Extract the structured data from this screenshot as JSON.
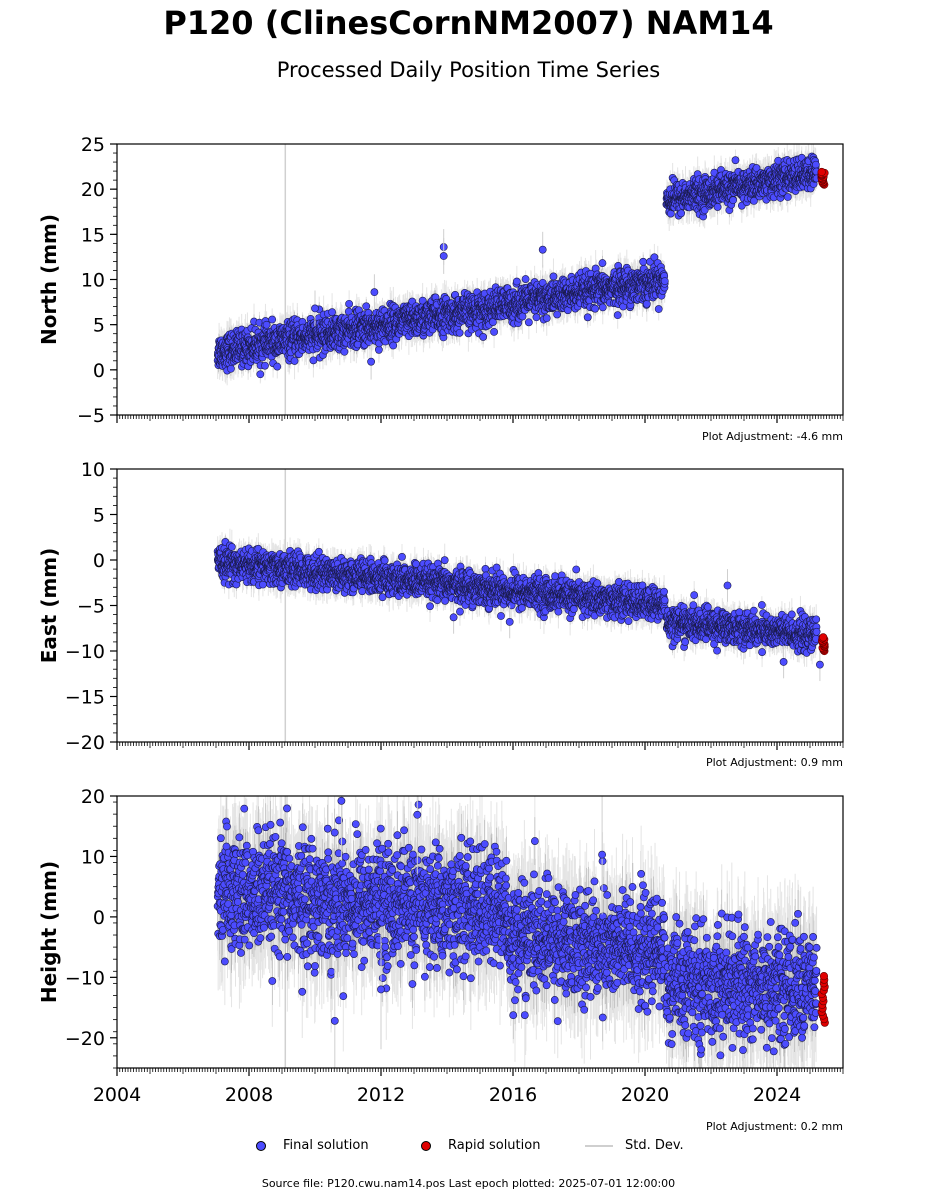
{
  "title": "P120 (ClinesCornNM2007) NAM14",
  "subtitle": "Processed Daily Position Time Series",
  "chart_data": [
    {
      "type": "scatter",
      "ylabel": "North (mm)",
      "xlim": [
        2004,
        2026
      ],
      "ylim": [
        -5,
        25
      ],
      "yticks": [
        -5,
        0,
        5,
        10,
        15,
        20,
        25
      ],
      "adjustment": "Plot Adjustment: -4.6 mm",
      "vline_x": 2009.1,
      "final_segments": [
        {
          "x0": 2007.05,
          "x1": 2020.6,
          "y0": 2.0,
          "y1": 10.0,
          "scatter": 1.1
        },
        {
          "x0": 2020.65,
          "x1": 2025.2,
          "y0": 18.8,
          "y1": 21.8,
          "scatter": 1.0
        }
      ],
      "outliers": [
        [
          2013.9,
          13.6
        ],
        [
          2013.9,
          12.6
        ],
        [
          2016.9,
          13.3
        ],
        [
          2011.8,
          8.6
        ],
        [
          2011.7,
          0.9
        ],
        [
          2010.0,
          6.8
        ]
      ],
      "rapid": {
        "x0": 2025.35,
        "x1": 2025.45,
        "ymin": 20.5,
        "ymax": 21.9
      }
    },
    {
      "type": "scatter",
      "ylabel": "East (mm)",
      "xlim": [
        2004,
        2026
      ],
      "ylim": [
        -20,
        10
      ],
      "yticks": [
        -20,
        -15,
        -10,
        -5,
        0,
        5,
        10
      ],
      "adjustment": "Plot Adjustment: 0.9 mm",
      "vline_x": 2009.1,
      "final_segments": [
        {
          "x0": 2007.05,
          "x1": 2020.6,
          "y0": -0.3,
          "y1": -5.0,
          "scatter": 1.0
        },
        {
          "x0": 2020.65,
          "x1": 2025.2,
          "y0": -6.8,
          "y1": -8.3,
          "scatter": 1.0
        }
      ],
      "outliers": [
        [
          2022.5,
          -2.8
        ],
        [
          2024.2,
          -11.2
        ],
        [
          2025.3,
          -11.5
        ],
        [
          2014.2,
          -6.3
        ],
        [
          2015.9,
          -6.8
        ]
      ],
      "rapid": {
        "x0": 2025.35,
        "x1": 2025.45,
        "ymin": -10.0,
        "ymax": -8.5
      }
    },
    {
      "type": "scatter",
      "ylabel": "Height (mm)",
      "xlim": [
        2004,
        2026
      ],
      "ylim": [
        -25,
        20
      ],
      "yticks": [
        -20,
        -10,
        0,
        10,
        20
      ],
      "adjustment": "Plot Adjustment: 0.2 mm",
      "vline_x": 2009.1,
      "final_segments": [
        {
          "x0": 2007.05,
          "x1": 2015.8,
          "y0": 4.0,
          "y1": 1.0,
          "scatter": 5.5
        },
        {
          "x0": 2015.8,
          "x1": 2020.6,
          "y0": -3.0,
          "y1": -6.0,
          "scatter": 5.0
        },
        {
          "x0": 2020.65,
          "x1": 2025.2,
          "y0": -11.0,
          "y1": -11.5,
          "scatter": 5.0
        }
      ],
      "outliers": [
        [
          2010.8,
          19.2
        ],
        [
          2010.6,
          -17.2
        ],
        [
          2012.0,
          -12.0
        ],
        [
          2018.7,
          10.3
        ],
        [
          2013.1,
          16.9
        ]
      ],
      "rapid": {
        "x0": 2025.35,
        "x1": 2025.45,
        "ymin": -17.5,
        "ymax": -9.8
      }
    }
  ],
  "xticks": [
    2004,
    2008,
    2012,
    2016,
    2020,
    2024
  ],
  "legend": {
    "final_label": "Final solution",
    "rapid_label": "Rapid solution",
    "std_label": "Std. Dev."
  },
  "colors": {
    "final": "#4c4cff",
    "rapid": "#e00000",
    "std": "#cfcfcf",
    "vline": "#d0d0d0"
  },
  "footer": "Source file: P120.cwu.nam14.pos  Last epoch plotted: 2025-07-01 12:00:00"
}
